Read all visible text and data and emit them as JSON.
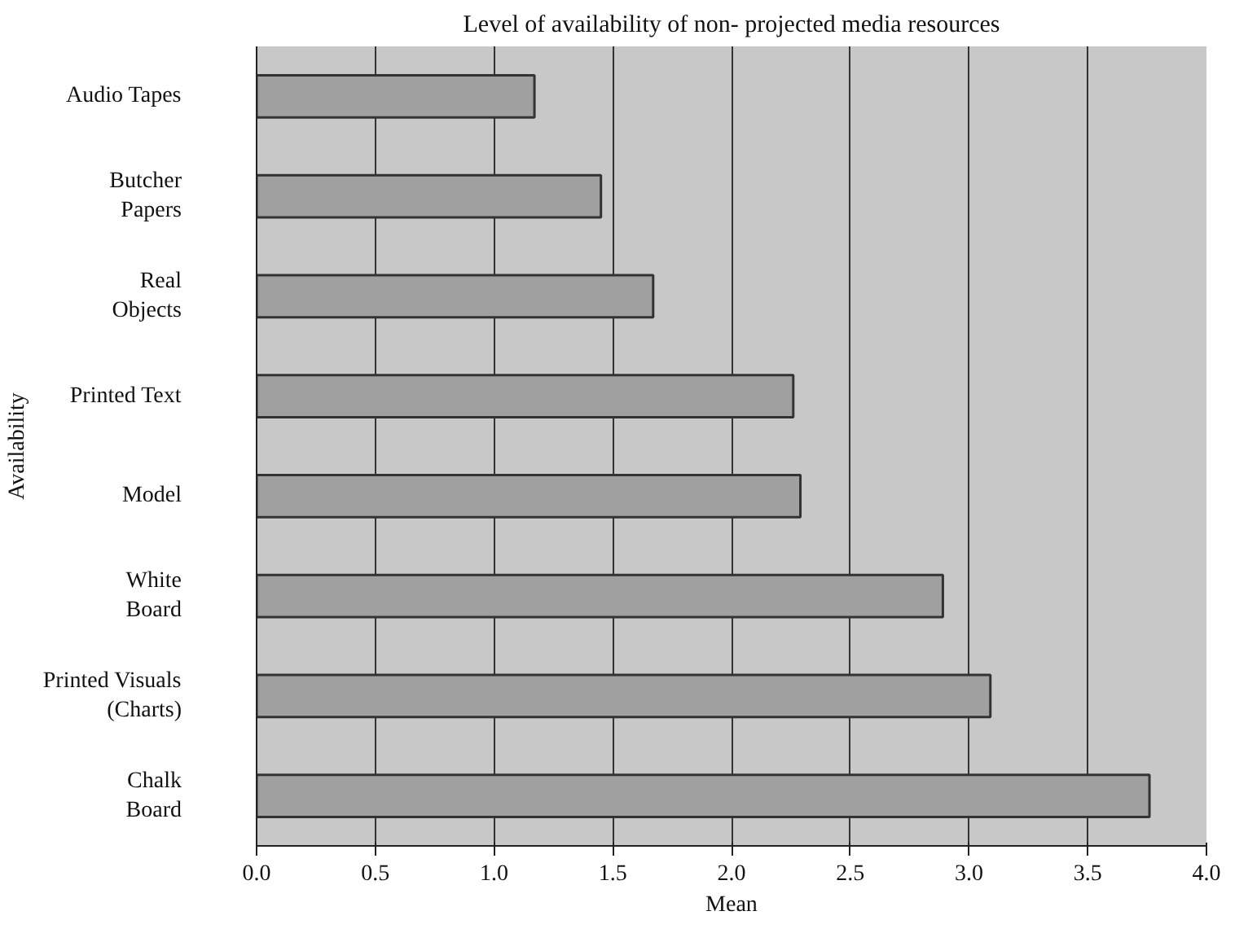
{
  "chart_data": {
    "type": "bar",
    "orientation": "horizontal",
    "title": "Level of availability of non- projected media resources",
    "xlabel": "Mean",
    "ylabel": "Availability",
    "categories": [
      "Audio Tapes",
      "Butcher\nPapers",
      "Real\nObjects",
      "Printed Text",
      "Model",
      "White\nBoard",
      "Printed Visuals\n(Charts)",
      "Chalk\nBoard"
    ],
    "values": [
      1.17,
      1.45,
      1.67,
      2.26,
      2.29,
      2.89,
      3.09,
      3.76
    ],
    "color": "#a0a0a0",
    "xlim": [
      0,
      4
    ],
    "xticks": [
      {
        "value": 0,
        "label": "0.0"
      },
      0.5,
      {
        "value": 1,
        "label": "1.0"
      },
      1.5,
      {
        "value": 2,
        "label": "2.0"
      },
      2.5,
      {
        "value": 3,
        "label": "3.0"
      },
      3.5,
      {
        "value": 4,
        "label": "4.0"
      }
    ],
    "grid": "x"
  }
}
